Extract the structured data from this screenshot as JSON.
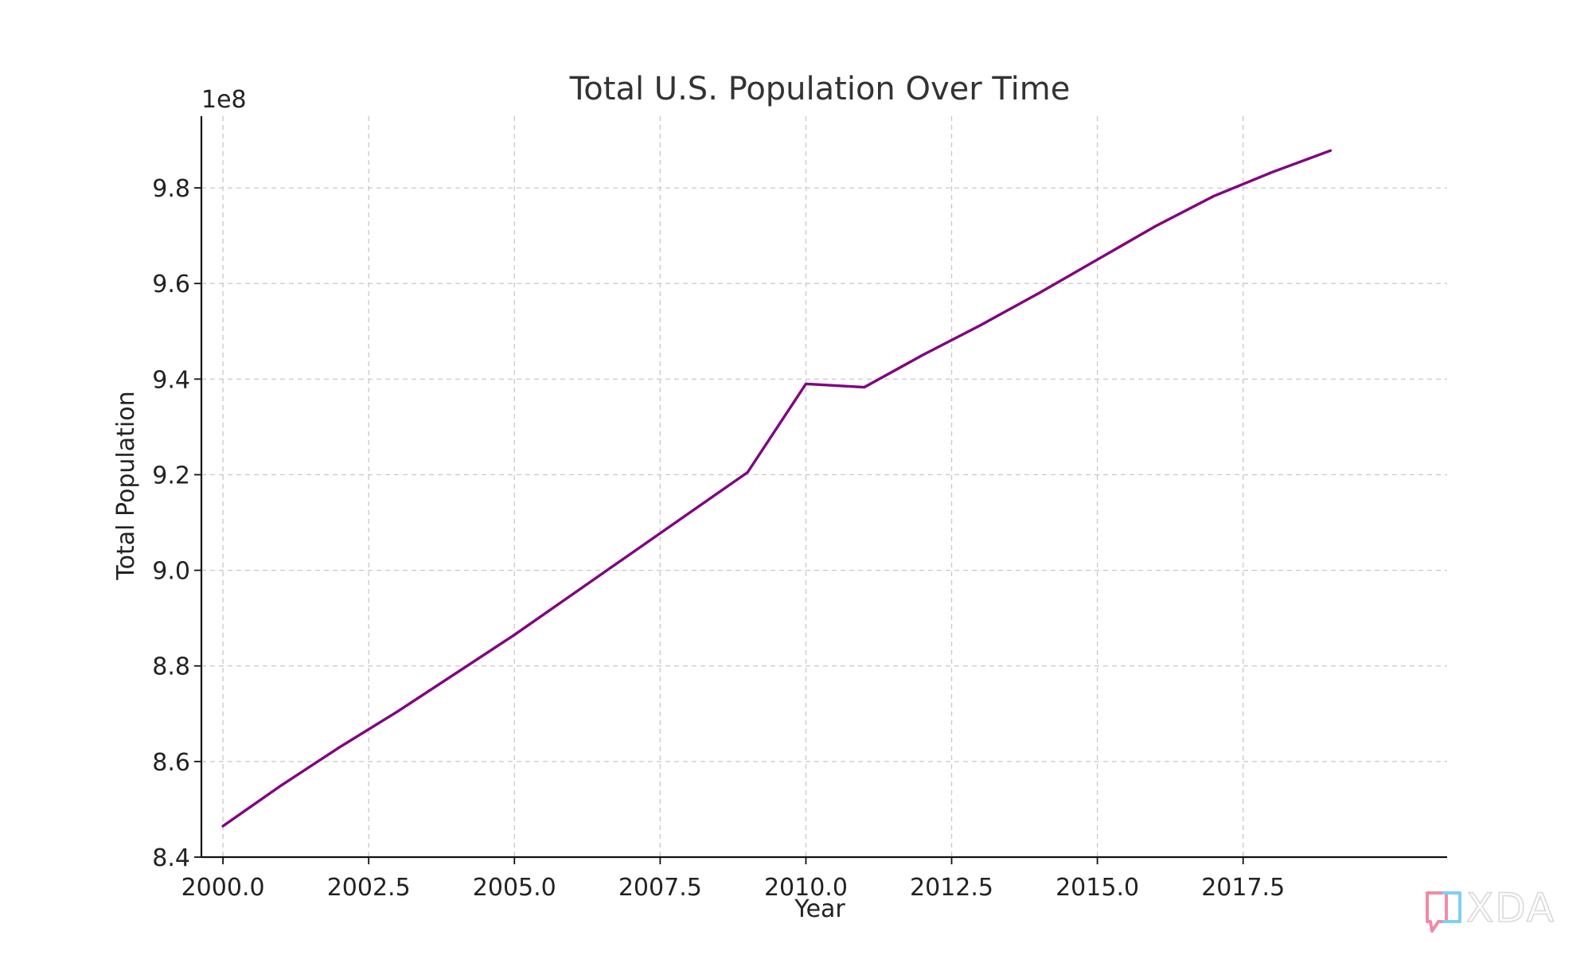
{
  "chart_data": {
    "type": "line",
    "title": "Total U.S. Population Over Time",
    "xlabel": "Year",
    "ylabel": "Total Population",
    "y_offset_label": "1e8",
    "xlim": [
      1999.63,
      2021.0
    ],
    "ylim": [
      8.4,
      9.95
    ],
    "x_ticks": [
      2000.0,
      2002.5,
      2005.0,
      2007.5,
      2010.0,
      2012.5,
      2015.0,
      2017.5
    ],
    "x_tick_labels": [
      "2000.0",
      "2002.5",
      "2005.0",
      "2007.5",
      "2010.0",
      "2012.5",
      "2015.0",
      "2017.5"
    ],
    "y_ticks": [
      8.4,
      8.6,
      8.8,
      9.0,
      9.2,
      9.4,
      9.6,
      9.8
    ],
    "y_tick_labels": [
      "8.4",
      "8.6",
      "8.8",
      "9.0",
      "9.2",
      "9.4",
      "9.6",
      "9.8"
    ],
    "grid": true,
    "legend": "none",
    "series": [
      {
        "color": "#800080",
        "x": [
          2000,
          2001,
          2002,
          2003,
          2004,
          2005,
          2006,
          2007,
          2008,
          2009,
          2010,
          2011,
          2012,
          2013,
          2014,
          2015,
          2016,
          2017,
          2018,
          2019
        ],
        "y": [
          8.465,
          8.55,
          8.63,
          8.705,
          8.785,
          8.865,
          8.95,
          9.035,
          9.12,
          9.205,
          9.39,
          9.383,
          9.45,
          9.513,
          9.58,
          9.65,
          9.72,
          9.783,
          9.833,
          9.878
        ]
      }
    ]
  },
  "watermark": {
    "text": "XDA",
    "colors": [
      "#f28aa6",
      "#7ecff0",
      "#b8b8b8"
    ]
  }
}
